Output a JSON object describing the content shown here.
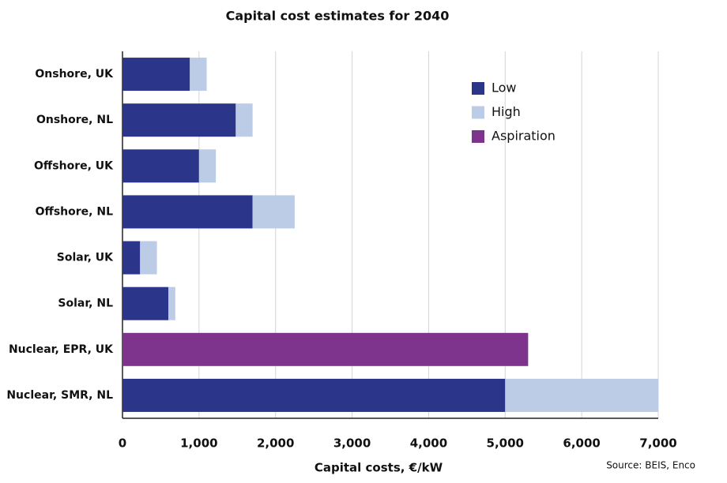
{
  "chart_data": {
    "type": "bar",
    "orientation": "horizontal",
    "stacked": true,
    "title": "Capital cost estimates for 2040",
    "x_label": "Capital costs, €/kW",
    "source": "Source: BEIS, Enco",
    "categories": [
      "Onshore, UK",
      "Onshore, NL",
      "Offshore, UK",
      "Offshore, NL",
      "Solar, UK",
      "Solar, NL",
      "Nuclear, EPR, UK",
      "Nuclear, SMR, NL"
    ],
    "series": [
      {
        "name": "Low",
        "color": "#2b3589",
        "values": [
          880,
          1480,
          1000,
          1700,
          230,
          600,
          null,
          5000
        ]
      },
      {
        "name": "High",
        "color": "#bccbe6",
        "values": [
          220,
          220,
          220,
          550,
          220,
          90,
          null,
          2000
        ]
      },
      {
        "name": "Aspiration",
        "color": "#7e338c",
        "values": [
          null,
          null,
          null,
          null,
          null,
          null,
          5300,
          null
        ]
      }
    ],
    "xlim": [
      0,
      7000
    ],
    "xticks": [
      0,
      {
        "value": 1000,
        "label": "1,000"
      },
      {
        "value": 2000,
        "label": "2,000"
      },
      {
        "value": 3000,
        "label": "3,000"
      },
      {
        "value": 4000,
        "label": "4,000"
      },
      {
        "value": 5000,
        "label": "5,000"
      },
      {
        "value": 6000,
        "label": "6,000"
      },
      {
        "value": 7000,
        "label": "7,000"
      }
    ],
    "grid": true,
    "legend": "upper right"
  }
}
